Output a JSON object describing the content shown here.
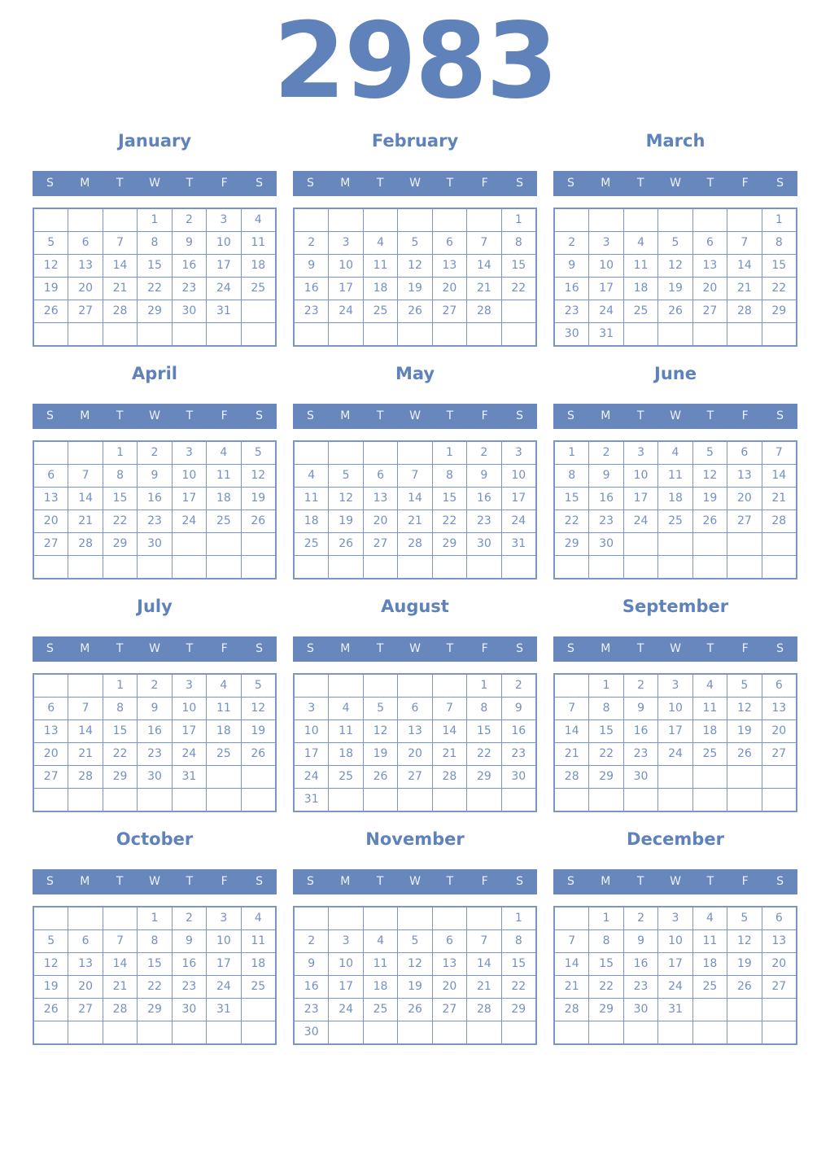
{
  "year": "2983",
  "day_headers": [
    "S",
    "M",
    "T",
    "W",
    "T",
    "F",
    "S"
  ],
  "colors": {
    "accent": "#5f82bb",
    "weekday_band": "#6887bd",
    "weekday_band_text": "#eef3fb",
    "grid_line": "#7b96c5",
    "day_number": "#7590c1",
    "background": "#ffffff"
  },
  "months": [
    {
      "name": "January",
      "weeks": [
        [
          "",
          "",
          "",
          "1",
          "2",
          "3",
          "4"
        ],
        [
          "5",
          "6",
          "7",
          "8",
          "9",
          "10",
          "11"
        ],
        [
          "12",
          "13",
          "14",
          "15",
          "16",
          "17",
          "18"
        ],
        [
          "19",
          "20",
          "21",
          "22",
          "23",
          "24",
          "25"
        ],
        [
          "26",
          "27",
          "28",
          "29",
          "30",
          "31",
          ""
        ],
        [
          "",
          "",
          "",
          "",
          "",
          "",
          ""
        ]
      ]
    },
    {
      "name": "February",
      "weeks": [
        [
          "",
          "",
          "",
          "",
          "",
          "",
          "1"
        ],
        [
          "2",
          "3",
          "4",
          "5",
          "6",
          "7",
          "8"
        ],
        [
          "9",
          "10",
          "11",
          "12",
          "13",
          "14",
          "15"
        ],
        [
          "16",
          "17",
          "18",
          "19",
          "20",
          "21",
          "22"
        ],
        [
          "23",
          "24",
          "25",
          "26",
          "27",
          "28",
          ""
        ],
        [
          "",
          "",
          "",
          "",
          "",
          "",
          ""
        ]
      ]
    },
    {
      "name": "March",
      "weeks": [
        [
          "",
          "",
          "",
          "",
          "",
          "",
          "1"
        ],
        [
          "2",
          "3",
          "4",
          "5",
          "6",
          "7",
          "8"
        ],
        [
          "9",
          "10",
          "11",
          "12",
          "13",
          "14",
          "15"
        ],
        [
          "16",
          "17",
          "18",
          "19",
          "20",
          "21",
          "22"
        ],
        [
          "23",
          "24",
          "25",
          "26",
          "27",
          "28",
          "29"
        ],
        [
          "30",
          "31",
          "",
          "",
          "",
          "",
          ""
        ]
      ]
    },
    {
      "name": "April",
      "weeks": [
        [
          "",
          "",
          "1",
          "2",
          "3",
          "4",
          "5"
        ],
        [
          "6",
          "7",
          "8",
          "9",
          "10",
          "11",
          "12"
        ],
        [
          "13",
          "14",
          "15",
          "16",
          "17",
          "18",
          "19"
        ],
        [
          "20",
          "21",
          "22",
          "23",
          "24",
          "25",
          "26"
        ],
        [
          "27",
          "28",
          "29",
          "30",
          "",
          "",
          ""
        ],
        [
          "",
          "",
          "",
          "",
          "",
          "",
          ""
        ]
      ]
    },
    {
      "name": "May",
      "weeks": [
        [
          "",
          "",
          "",
          "",
          "1",
          "2",
          "3"
        ],
        [
          "4",
          "5",
          "6",
          "7",
          "8",
          "9",
          "10"
        ],
        [
          "11",
          "12",
          "13",
          "14",
          "15",
          "16",
          "17"
        ],
        [
          "18",
          "19",
          "20",
          "21",
          "22",
          "23",
          "24"
        ],
        [
          "25",
          "26",
          "27",
          "28",
          "29",
          "30",
          "31"
        ],
        [
          "",
          "",
          "",
          "",
          "",
          "",
          ""
        ]
      ]
    },
    {
      "name": "June",
      "weeks": [
        [
          "1",
          "2",
          "3",
          "4",
          "5",
          "6",
          "7"
        ],
        [
          "8",
          "9",
          "10",
          "11",
          "12",
          "13",
          "14"
        ],
        [
          "15",
          "16",
          "17",
          "18",
          "19",
          "20",
          "21"
        ],
        [
          "22",
          "23",
          "24",
          "25",
          "26",
          "27",
          "28"
        ],
        [
          "29",
          "30",
          "",
          "",
          "",
          "",
          ""
        ],
        [
          "",
          "",
          "",
          "",
          "",
          "",
          ""
        ]
      ]
    },
    {
      "name": "July",
      "weeks": [
        [
          "",
          "",
          "1",
          "2",
          "3",
          "4",
          "5"
        ],
        [
          "6",
          "7",
          "8",
          "9",
          "10",
          "11",
          "12"
        ],
        [
          "13",
          "14",
          "15",
          "16",
          "17",
          "18",
          "19"
        ],
        [
          "20",
          "21",
          "22",
          "23",
          "24",
          "25",
          "26"
        ],
        [
          "27",
          "28",
          "29",
          "30",
          "31",
          "",
          ""
        ],
        [
          "",
          "",
          "",
          "",
          "",
          "",
          ""
        ]
      ]
    },
    {
      "name": "August",
      "weeks": [
        [
          "",
          "",
          "",
          "",
          "",
          "1",
          "2"
        ],
        [
          "3",
          "4",
          "5",
          "6",
          "7",
          "8",
          "9"
        ],
        [
          "10",
          "11",
          "12",
          "13",
          "14",
          "15",
          "16"
        ],
        [
          "17",
          "18",
          "19",
          "20",
          "21",
          "22",
          "23"
        ],
        [
          "24",
          "25",
          "26",
          "27",
          "28",
          "29",
          "30"
        ],
        [
          "31",
          "",
          "",
          "",
          "",
          "",
          ""
        ]
      ]
    },
    {
      "name": "September",
      "weeks": [
        [
          "",
          "1",
          "2",
          "3",
          "4",
          "5",
          "6"
        ],
        [
          "7",
          "8",
          "9",
          "10",
          "11",
          "12",
          "13"
        ],
        [
          "14",
          "15",
          "16",
          "17",
          "18",
          "19",
          "20"
        ],
        [
          "21",
          "22",
          "23",
          "24",
          "25",
          "26",
          "27"
        ],
        [
          "28",
          "29",
          "30",
          "",
          "",
          "",
          ""
        ],
        [
          "",
          "",
          "",
          "",
          "",
          "",
          ""
        ]
      ]
    },
    {
      "name": "October",
      "weeks": [
        [
          "",
          "",
          "",
          "1",
          "2",
          "3",
          "4"
        ],
        [
          "5",
          "6",
          "7",
          "8",
          "9",
          "10",
          "11"
        ],
        [
          "12",
          "13",
          "14",
          "15",
          "16",
          "17",
          "18"
        ],
        [
          "19",
          "20",
          "21",
          "22",
          "23",
          "24",
          "25"
        ],
        [
          "26",
          "27",
          "28",
          "29",
          "30",
          "31",
          ""
        ],
        [
          "",
          "",
          "",
          "",
          "",
          "",
          ""
        ]
      ]
    },
    {
      "name": "November",
      "weeks": [
        [
          "",
          "",
          "",
          "",
          "",
          "",
          "1"
        ],
        [
          "2",
          "3",
          "4",
          "5",
          "6",
          "7",
          "8"
        ],
        [
          "9",
          "10",
          "11",
          "12",
          "13",
          "14",
          "15"
        ],
        [
          "16",
          "17",
          "18",
          "19",
          "20",
          "21",
          "22"
        ],
        [
          "23",
          "24",
          "25",
          "26",
          "27",
          "28",
          "29"
        ],
        [
          "30",
          "",
          "",
          "",
          "",
          "",
          ""
        ]
      ]
    },
    {
      "name": "December",
      "weeks": [
        [
          "",
          "1",
          "2",
          "3",
          "4",
          "5",
          "6"
        ],
        [
          "7",
          "8",
          "9",
          "10",
          "11",
          "12",
          "13"
        ],
        [
          "14",
          "15",
          "16",
          "17",
          "18",
          "19",
          "20"
        ],
        [
          "21",
          "22",
          "23",
          "24",
          "25",
          "26",
          "27"
        ],
        [
          "28",
          "29",
          "30",
          "31",
          "",
          "",
          ""
        ],
        [
          "",
          "",
          "",
          "",
          "",
          "",
          ""
        ]
      ]
    }
  ]
}
